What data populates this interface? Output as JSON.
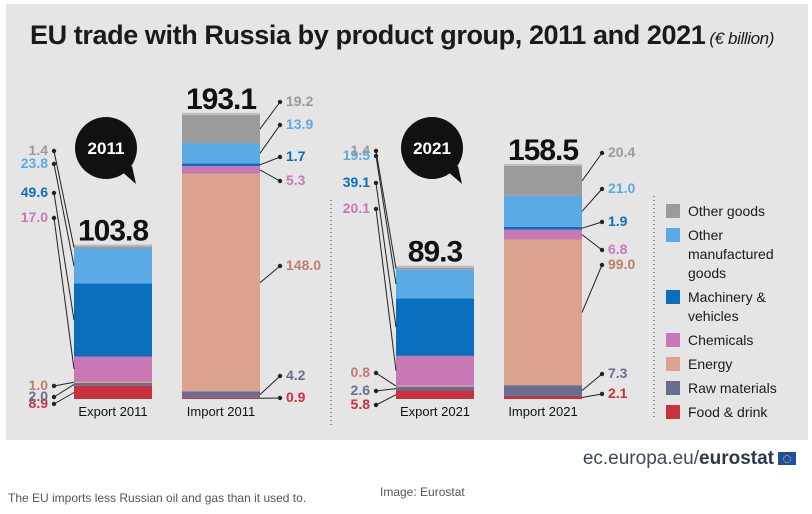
{
  "chart_data": {
    "type": "bar",
    "stacked": true,
    "title": "EU trade with Russia by product group, 2011 and 2021",
    "unit": "(€ billion)",
    "categories": [
      "Export 2011",
      "Import 2011",
      "Export 2021",
      "Import 2021"
    ],
    "year_badges": [
      "2011",
      "2021"
    ],
    "totals": [
      "103.8",
      "193.1",
      "89.3",
      "158.5"
    ],
    "series": [
      {
        "name": "Food & drink",
        "color": "#c8323c",
        "values": [
          8.9,
          0.9,
          5.8,
          2.1
        ],
        "labels": [
          "8.9",
          "0.9",
          "5.8",
          "2.1"
        ]
      },
      {
        "name": "Raw materials",
        "color": "#6a6d92",
        "values": [
          2.0,
          4.2,
          2.6,
          7.3
        ],
        "labels": [
          "2.0",
          "4.2",
          "2.6",
          "7.3"
        ]
      },
      {
        "name": "Energy",
        "color": "#dba28e",
        "values": [
          1.0,
          148.0,
          0.8,
          99.0
        ],
        "labels": [
          "1.0",
          "148.0",
          "0.8",
          "99.0"
        ]
      },
      {
        "name": "Chemicals",
        "color": "#c878b4",
        "values": [
          17.0,
          5.3,
          20.1,
          6.8
        ],
        "labels": [
          "17.0",
          "5.3",
          "20.1",
          "6.8"
        ]
      },
      {
        "name": "Machinery & vehicles",
        "color": "#0a6ebd",
        "values": [
          49.6,
          1.7,
          39.1,
          1.9
        ],
        "labels": [
          "49.6",
          "1.7",
          "39.1",
          "1.9"
        ]
      },
      {
        "name": "Other manufactured goods",
        "color": "#5aaae6",
        "values": [
          23.8,
          13.9,
          19.5,
          21.0
        ],
        "labels": [
          "23.8",
          "13.9",
          "19.5",
          "21.0"
        ]
      },
      {
        "name": "Other goods",
        "color": "#9b9b9b",
        "values": [
          1.4,
          19.2,
          1.4,
          20.4
        ],
        "labels": [
          "1.4",
          "19.2",
          "1.4",
          "20.4"
        ]
      }
    ],
    "legend_entries": [
      {
        "lines": [
          "Other goods"
        ],
        "color": "#9b9b9b"
      },
      {
        "lines": [
          "Other",
          "manufactured",
          "goods"
        ],
        "color": "#5aaae6"
      },
      {
        "lines": [
          "Machinery &",
          "vehicles"
        ],
        "color": "#0a6ebd"
      },
      {
        "lines": [
          "Chemicals"
        ],
        "color": "#c878b4"
      },
      {
        "lines": [
          "Energy"
        ],
        "color": "#dba28e"
      },
      {
        "lines": [
          "Raw materials"
        ],
        "color": "#6a6d92"
      },
      {
        "lines": [
          "Food & drink"
        ],
        "color": "#c8323c"
      }
    ],
    "legend_position": "right"
  },
  "footer": {
    "site": "ec.europa.eu/",
    "brand": "eurostat"
  },
  "caption": "The EU imports less Russian oil and gas than it used to.",
  "credit": "Image: Eurostat"
}
